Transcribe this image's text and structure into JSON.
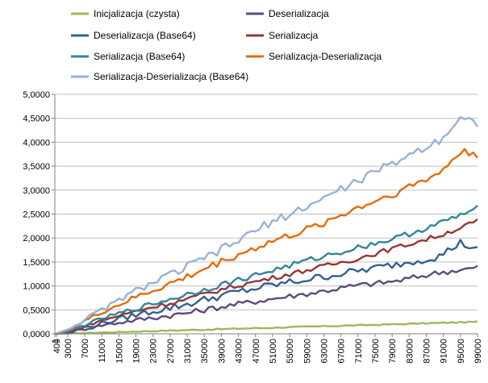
{
  "chart_data": {
    "type": "line",
    "grid": true,
    "legend_position": "top",
    "ylim": [
      0,
      5
    ],
    "yticks": [
      "0,0000",
      "0,5000",
      "1,0000",
      "1,5000",
      "2,0000",
      "2,5000",
      "3,0000",
      "3,5000",
      "4,0000",
      "4,5000",
      "5,0000"
    ],
    "xlim": [
      1,
      99000
    ],
    "xticks": [
      "1",
      "400",
      "3000",
      "7000",
      "11000",
      "15000",
      "19000",
      "23000",
      "27000",
      "31000",
      "35000",
      "39000",
      "43000",
      "47000",
      "51000",
      "55000",
      "59000",
      "63000",
      "67000",
      "71000",
      "75000",
      "79000",
      "83000",
      "87000",
      "91000",
      "95000",
      "99000"
    ],
    "series": [
      {
        "name": "Inicjalizacja (czysta)",
        "color": "#9bbb59",
        "slope": 2.6e-06,
        "noise": 0.012,
        "anchors": [
          [
            1,
            0
          ],
          [
            3000,
            0.005
          ],
          [
            20000,
            0.05
          ],
          [
            40000,
            0.1
          ],
          [
            60000,
            0.15
          ],
          [
            80000,
            0.2
          ],
          [
            99000,
            0.25
          ]
        ]
      },
      {
        "name": "Deserializacja",
        "color": "#604a7b",
        "noise": 0.06,
        "anchors": [
          [
            1,
            0
          ],
          [
            3000,
            0.02
          ],
          [
            11000,
            0.18
          ],
          [
            20000,
            0.3
          ],
          [
            30000,
            0.42
          ],
          [
            40000,
            0.58
          ],
          [
            50000,
            0.72
          ],
          [
            60000,
            0.85
          ],
          [
            70000,
            1.0
          ],
          [
            80000,
            1.1
          ],
          [
            90000,
            1.28
          ],
          [
            99000,
            1.38
          ]
        ]
      },
      {
        "name": "Deserializacja (Base64)",
        "color": "#366092",
        "noise": 0.08,
        "anchors": [
          [
            1,
            0
          ],
          [
            3000,
            0.03
          ],
          [
            11000,
            0.22
          ],
          [
            20000,
            0.42
          ],
          [
            30000,
            0.6
          ],
          [
            40000,
            0.82
          ],
          [
            50000,
            1.0
          ],
          [
            60000,
            1.15
          ],
          [
            70000,
            1.3
          ],
          [
            80000,
            1.45
          ],
          [
            90000,
            1.62
          ],
          [
            95000,
            1.9
          ],
          [
            99000,
            1.75
          ]
        ]
      },
      {
        "name": "Serializacja",
        "color": "#953735",
        "noise": 0.05,
        "anchors": [
          [
            1,
            0
          ],
          [
            3000,
            0.04
          ],
          [
            11000,
            0.28
          ],
          [
            20000,
            0.5
          ],
          [
            30000,
            0.7
          ],
          [
            40000,
            0.95
          ],
          [
            50000,
            1.15
          ],
          [
            60000,
            1.35
          ],
          [
            70000,
            1.55
          ],
          [
            80000,
            1.8
          ],
          [
            90000,
            2.05
          ],
          [
            99000,
            2.35
          ]
        ]
      },
      {
        "name": "Serializacja (Base64)",
        "color": "#31859c",
        "noise": 0.06,
        "anchors": [
          [
            1,
            0
          ],
          [
            3000,
            0.05
          ],
          [
            11000,
            0.32
          ],
          [
            20000,
            0.55
          ],
          [
            30000,
            0.8
          ],
          [
            40000,
            1.05
          ],
          [
            50000,
            1.3
          ],
          [
            60000,
            1.55
          ],
          [
            70000,
            1.78
          ],
          [
            80000,
            2.0
          ],
          [
            90000,
            2.3
          ],
          [
            99000,
            2.62
          ]
        ]
      },
      {
        "name": "Serializacja-Deserializacja",
        "color": "#e46c0a",
        "noise": 0.08,
        "anchors": [
          [
            1,
            0
          ],
          [
            3000,
            0.08
          ],
          [
            11000,
            0.45
          ],
          [
            20000,
            0.8
          ],
          [
            30000,
            1.15
          ],
          [
            40000,
            1.55
          ],
          [
            50000,
            1.9
          ],
          [
            60000,
            2.2
          ],
          [
            70000,
            2.6
          ],
          [
            80000,
            2.95
          ],
          [
            90000,
            3.35
          ],
          [
            95000,
            3.8
          ],
          [
            99000,
            3.75
          ]
        ]
      },
      {
        "name": "Serializacja-Deserializacja (Base64)",
        "color": "#95b3d7",
        "noise": 0.09,
        "anchors": [
          [
            1,
            0
          ],
          [
            3000,
            0.09
          ],
          [
            11000,
            0.5
          ],
          [
            20000,
            0.95
          ],
          [
            30000,
            1.35
          ],
          [
            40000,
            1.8
          ],
          [
            50000,
            2.3
          ],
          [
            60000,
            2.7
          ],
          [
            70000,
            3.15
          ],
          [
            80000,
            3.6
          ],
          [
            90000,
            4.05
          ],
          [
            95000,
            4.5
          ],
          [
            99000,
            4.4
          ]
        ]
      }
    ]
  }
}
